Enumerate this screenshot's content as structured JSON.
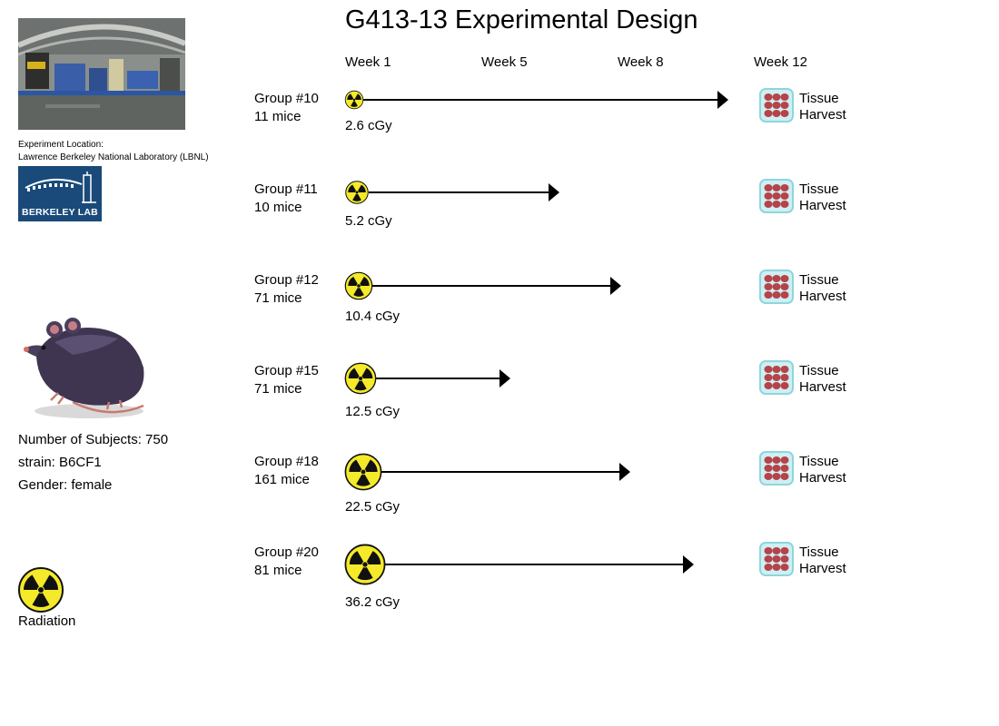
{
  "title": "G413-13 Experimental Design",
  "weeks": [
    "Week 1",
    "Week 5",
    "Week 8",
    "Week 12"
  ],
  "location": {
    "label": "Experiment Location:",
    "name": "Lawrence Berkeley National Laboratory (LBNL)",
    "logo_text": "BERKELEY LAB"
  },
  "subjects": {
    "count": "Number of Subjects: 750",
    "strain": "strain: B6CF1",
    "gender": "Gender: female"
  },
  "legend": {
    "label": "Radiation",
    "icon": "radiation-icon"
  },
  "colors": {
    "radiation_yellow": "#f4ea2a",
    "logo_blue": "#1a4a7a",
    "tissue_bg": "#cfeff2",
    "tissue_red": "#b5434a"
  },
  "tissue_label_line1": "Tissue",
  "tissue_label_line2": "Harvest",
  "groups": [
    {
      "name": "Group #10",
      "count": "11 mice",
      "dose": "2.6 cGy"
    },
    {
      "name": "Group #11",
      "count": "10 mice",
      "dose": "5.2 cGy"
    },
    {
      "name": "Group #12",
      "count": "71 mice",
      "dose": "10.4 cGy"
    },
    {
      "name": "Group #15",
      "count": "71 mice",
      "dose": "12.5 cGy"
    },
    {
      "name": "Group #18",
      "count": "161 mice",
      "dose": "22.5 cGy"
    },
    {
      "name": "Group #20",
      "count": "81 mice",
      "dose": "36.2 cGy"
    }
  ]
}
